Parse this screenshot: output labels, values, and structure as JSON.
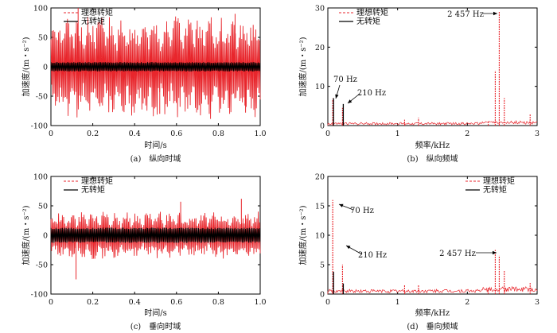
{
  "chart_data": [
    {
      "type": "line",
      "caption": "(a)　纵向时域",
      "xlabel": "时间/s",
      "ylabel": "加速度/(m・s⁻²)",
      "xlim": [
        0,
        1.0
      ],
      "ylim": [
        -100,
        100
      ],
      "xticks": [
        "0",
        "0.2",
        "0.4",
        "0.6",
        "0.8",
        "1.0"
      ],
      "yticks": [
        "100",
        "50",
        "0",
        "-50",
        "-100"
      ],
      "legend": "top-left",
      "series": [
        {
          "name": "理想转矩",
          "style": "dashed",
          "color": "#e8262c",
          "envelope": 75,
          "peaks": [
            {
              "x": 0.13,
              "y": 100
            },
            {
              "x": 0.88,
              "y": 90
            },
            {
              "x": 0.52,
              "y": -80
            },
            {
              "x": 0.93,
              "y": -78
            }
          ]
        },
        {
          "name": "无转矩",
          "style": "solid",
          "color": "#000000",
          "envelope": 8
        }
      ]
    },
    {
      "type": "line",
      "caption": "(b)　纵向频域",
      "xlabel": "频率/kHz",
      "ylabel": "加速度/(m・s⁻²)",
      "xlim": [
        0,
        3
      ],
      "ylim": [
        0,
        30
      ],
      "xticks": [
        "0",
        "1",
        "2",
        "3"
      ],
      "yticks": [
        "30",
        "20",
        "10",
        "0"
      ],
      "legend": "top-center",
      "annotations": [
        "2 457 Hz",
        "70 Hz",
        "210 Hz"
      ],
      "series": [
        {
          "name": "理想转矩",
          "style": "dashed",
          "color": "#e8262c",
          "x_khz": [
            0.07,
            0.21,
            1.1,
            1.3,
            2.3,
            2.4,
            2.457,
            2.53,
            2.9
          ],
          "y": [
            6.8,
            4.5,
            1.5,
            2.0,
            1.0,
            14.0,
            29.0,
            7.0,
            3.0
          ]
        },
        {
          "name": "无转矩",
          "style": "solid",
          "color": "#000000",
          "x_khz": [
            0.07,
            0.21
          ],
          "y": [
            7.0,
            5.5
          ]
        }
      ]
    },
    {
      "type": "line",
      "caption": "(c)　垂向时域",
      "xlabel": "时间/s",
      "ylabel": "加速度/(m・s⁻²)",
      "xlim": [
        0,
        1.0
      ],
      "ylim": [
        -100,
        100
      ],
      "xticks": [
        "0",
        "0.2",
        "0.4",
        "0.6",
        "0.8",
        "1.0"
      ],
      "yticks": [
        "100",
        "50",
        "0",
        "-50",
        "-100"
      ],
      "legend": "top-left",
      "series": [
        {
          "name": "理想转矩",
          "style": "dashed",
          "color": "#e8262c",
          "envelope": 35,
          "peaks": [
            {
              "x": 0.12,
              "y": -75
            },
            {
              "x": 0.62,
              "y": 57
            },
            {
              "x": 0.91,
              "y": 62
            }
          ]
        },
        {
          "name": "无转矩",
          "style": "solid",
          "color": "#000000",
          "envelope": 13
        }
      ]
    },
    {
      "type": "line",
      "caption": "(d)　垂向频域",
      "xlabel": "频率/kHz",
      "ylabel": "加速度/(m・s⁻²)",
      "xlim": [
        0,
        3
      ],
      "ylim": [
        0,
        20
      ],
      "xticks": [
        "0",
        "1",
        "2",
        "3"
      ],
      "yticks": [
        "20",
        "15",
        "10",
        "5",
        "0"
      ],
      "legend": "top-right",
      "annotations": [
        "70 Hz",
        "210 Hz",
        "2 457 Hz"
      ],
      "series": [
        {
          "name": "理想转矩",
          "style": "dashed",
          "color": "#e8262c",
          "x_khz": [
            0.07,
            0.21,
            1.1,
            1.3,
            2.3,
            2.4,
            2.457,
            2.53,
            2.9
          ],
          "y": [
            16.0,
            5.0,
            1.5,
            1.5,
            1.0,
            7.5,
            6.5,
            4.0,
            2.0
          ]
        },
        {
          "name": "无转矩",
          "style": "solid",
          "color": "#000000",
          "x_khz": [
            0.07,
            0.21
          ],
          "y": [
            3.8,
            1.8
          ]
        }
      ]
    }
  ]
}
